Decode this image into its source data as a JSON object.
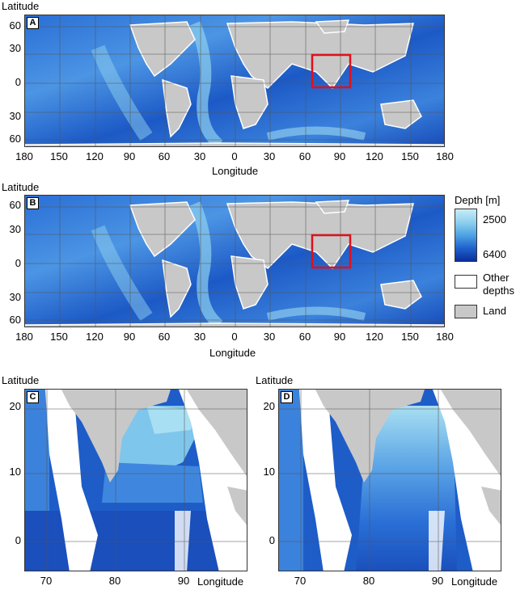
{
  "axis": {
    "latitude": "Latitude",
    "longitude": "Longitude"
  },
  "panels": {
    "A": {
      "tag": "A",
      "lat_ticks": [
        "60",
        "30",
        "0",
        "30",
        "60"
      ],
      "lon_ticks": [
        "180",
        "150",
        "120",
        "90",
        "60",
        "30",
        "0",
        "30",
        "60",
        "90",
        "120",
        "150",
        "180"
      ]
    },
    "B": {
      "tag": "B",
      "lat_ticks": [
        "60",
        "30",
        "0",
        "30",
        "60"
      ],
      "lon_ticks": [
        "180",
        "150",
        "120",
        "90",
        "60",
        "30",
        "0",
        "30",
        "60",
        "90",
        "120",
        "150",
        "180"
      ]
    },
    "C": {
      "tag": "C",
      "lat_ticks": [
        "20",
        "10",
        "0"
      ],
      "lon_ticks": [
        "70",
        "80",
        "90"
      ]
    },
    "D": {
      "tag": "D",
      "lat_ticks": [
        "20",
        "10",
        "0"
      ],
      "lon_ticks": [
        "70",
        "80",
        "90"
      ]
    }
  },
  "legend": {
    "title": "Depth [m]",
    "min_label": "2500",
    "max_label": "6400",
    "other_line1": "Other",
    "other_line2": "depths",
    "land": "Land"
  },
  "colors": {
    "land": "#c8c8c8",
    "shallow": "#ffffff",
    "deep_light": "#a9dff2",
    "deep_dark": "#0a2e9c",
    "highlight_box": "#e0101a"
  }
}
